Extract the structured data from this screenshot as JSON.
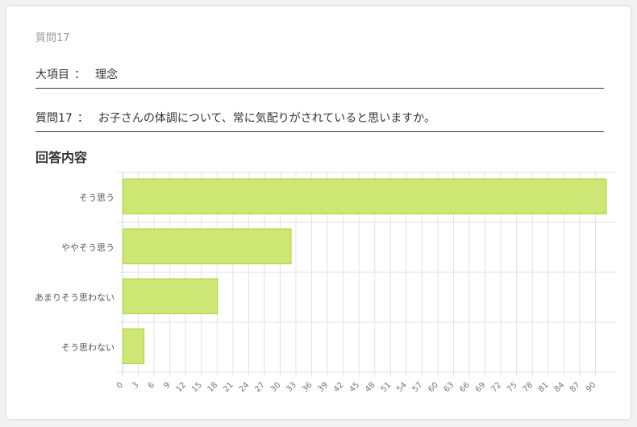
{
  "question_number_label": "質問17",
  "category": {
    "label": "大項目",
    "colon": "：",
    "value": "理念"
  },
  "question": {
    "label": "質問17",
    "colon": "：",
    "text": "お子さんの体調について、常に気配りがされていると思いますか。"
  },
  "section_title": "回答内容",
  "colors": {
    "bar_fill": "#cde674",
    "bar_stroke": "#a8d432",
    "grid": "#e2e2e2",
    "tick_text": "#777777",
    "label_text": "#555555"
  },
  "chart_data": {
    "type": "bar",
    "orientation": "horizontal",
    "categories": [
      "そう思う",
      "ややそう思う",
      "あまりそう思わない",
      "そう思わない"
    ],
    "values": [
      92,
      32,
      18,
      4
    ],
    "xlim": [
      0,
      93
    ],
    "x_ticks": [
      0,
      3,
      6,
      9,
      12,
      15,
      18,
      21,
      24,
      27,
      30,
      33,
      36,
      39,
      42,
      45,
      48,
      51,
      54,
      57,
      60,
      63,
      66,
      69,
      72,
      75,
      78,
      81,
      84,
      87,
      90
    ],
    "title": "",
    "xlabel": "",
    "ylabel": "",
    "grid": true,
    "legend": false
  }
}
